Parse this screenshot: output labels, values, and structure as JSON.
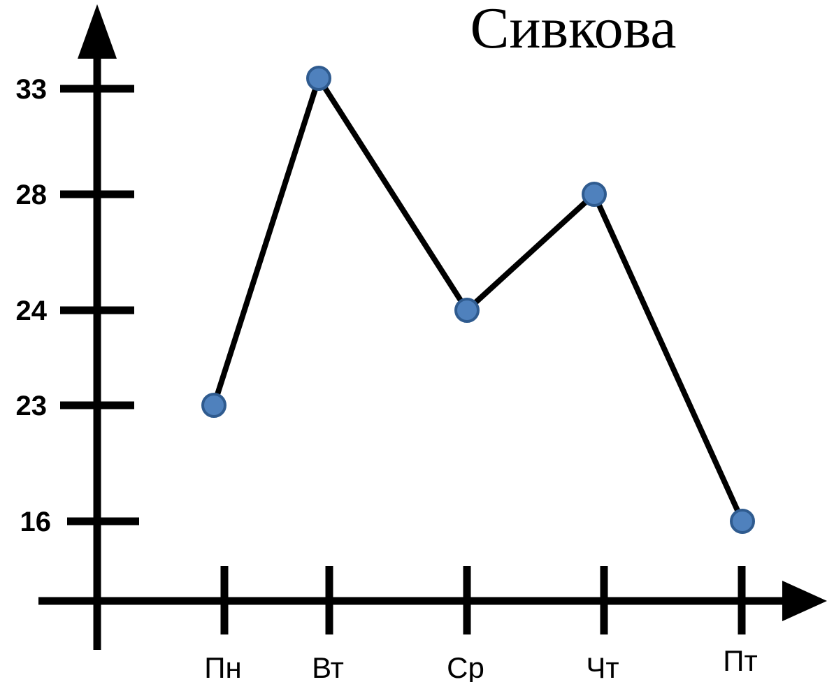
{
  "chart_data": {
    "type": "line",
    "title": "Сивкова",
    "xlabel": "",
    "ylabel": "",
    "categories": [
      "Пн",
      "Вт",
      "Ср",
      "Чт",
      "Пт"
    ],
    "y_ticks": [
      "33",
      "28",
      "24",
      "23",
      "16"
    ],
    "series": [
      {
        "values": [
          23,
          33,
          24,
          28,
          16
        ]
      }
    ],
    "grid": false,
    "colors": {
      "line": "#000000",
      "marker": "#4f81bd",
      "marker_edge": "#2f5b8f",
      "axis": "#000000"
    }
  }
}
